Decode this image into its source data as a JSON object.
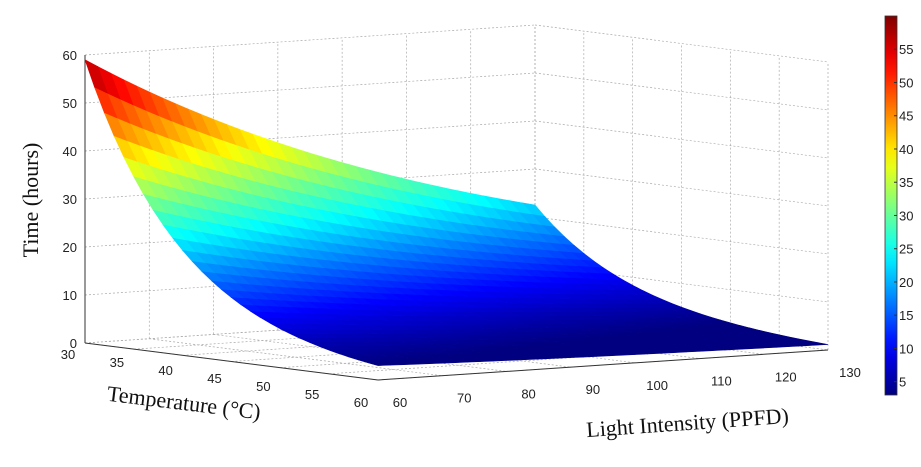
{
  "chart_data": {
    "type": "surface",
    "title": "",
    "xlabel": "Temperature (°C)",
    "ylabel": "Light Intensity (PPFD)",
    "zlabel": "Time (hours)",
    "xlim": [
      30,
      60
    ],
    "ylim": [
      60,
      130
    ],
    "zlim": [
      0,
      60
    ],
    "x_ticks": [
      30,
      35,
      40,
      45,
      50,
      55,
      60
    ],
    "y_ticks": [
      60,
      70,
      80,
      90,
      100,
      110,
      120,
      130
    ],
    "z_ticks": [
      0,
      10,
      20,
      30,
      40,
      50,
      60
    ],
    "grid": true,
    "colormap": "jet",
    "colorbar": {
      "range": [
        3,
        60
      ],
      "ticks": [
        5,
        10,
        15,
        20,
        25,
        30,
        35,
        40,
        45,
        50,
        55
      ],
      "placement": "right"
    },
    "corner_values": [
      {
        "temperature": 30,
        "light": 60,
        "time": 59
      },
      {
        "temperature": 30,
        "light": 130,
        "time": 22.5
      },
      {
        "temperature": 60,
        "light": 60,
        "time": 3
      },
      {
        "temperature": 60,
        "light": 130,
        "time": 1.1
      }
    ]
  }
}
